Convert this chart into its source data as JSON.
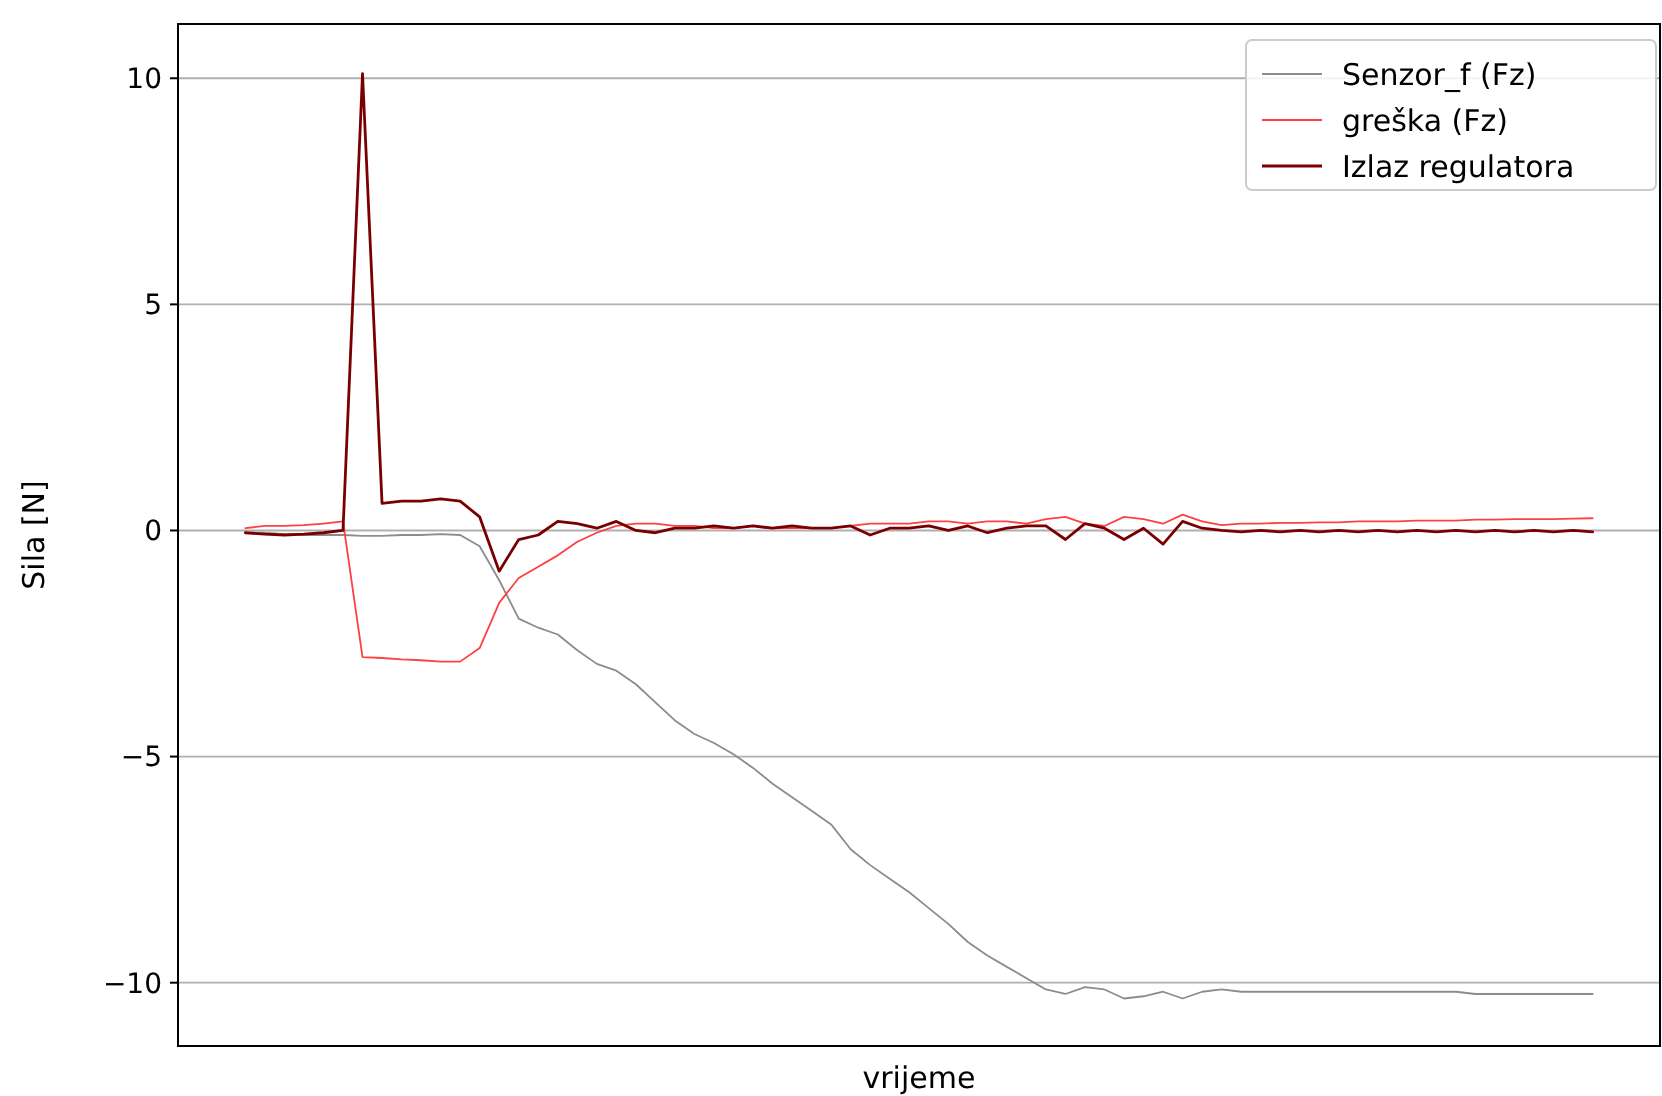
{
  "chart_data": {
    "type": "line",
    "xlabel": "vrijeme",
    "ylabel": "Sila [N]",
    "categories": [
      null,
      null,
      null,
      null,
      null,
      null,
      null,
      null,
      null,
      null,
      null,
      null,
      null,
      null,
      null,
      null,
      null,
      null,
      null,
      null,
      null,
      null,
      null,
      null,
      null,
      null,
      null,
      null,
      null,
      null,
      null,
      null,
      null,
      null,
      null,
      null,
      null,
      null,
      null,
      null,
      null,
      null,
      null,
      null,
      null,
      null,
      null,
      null,
      null,
      null,
      null,
      null,
      null,
      null,
      null,
      null,
      null,
      null,
      null,
      null,
      null,
      null,
      null,
      null,
      null,
      null,
      null,
      null,
      null,
      null
    ],
    "ylim": [
      -11.4,
      11.2
    ],
    "yticks": [
      -10,
      -5,
      0,
      5,
      10
    ],
    "grid": "y",
    "legend": "top right",
    "tick_labels": "y",
    "marker": "none",
    "line_style": "solid",
    "series": [
      {
        "name": "Senzor_f (Fz)",
        "color": "#8c8c8c",
        "values": [
          -0.05,
          -0.05,
          -0.08,
          -0.1,
          -0.1,
          -0.1,
          -0.12,
          -0.12,
          -0.1,
          -0.1,
          -0.08,
          -0.1,
          -0.35,
          -1.1,
          -1.95,
          -2.15,
          -2.3,
          -2.65,
          -2.95,
          -3.1,
          -3.4,
          -3.8,
          -4.2,
          -4.5,
          -4.7,
          -4.95,
          -5.25,
          -5.6,
          -5.9,
          -6.2,
          -6.5,
          -7.05,
          -7.4,
          -7.7,
          -8.0,
          -8.35,
          -8.7,
          -9.1,
          -9.4,
          -9.65,
          -9.9,
          -10.15,
          -10.25,
          -10.1,
          -10.15,
          -10.35,
          -10.3,
          -10.2,
          -10.35,
          -10.2,
          -10.15,
          -10.2,
          -10.2,
          -10.2,
          -10.2,
          -10.2,
          -10.2,
          -10.2,
          -10.2,
          -10.2,
          -10.2,
          -10.2,
          -10.2,
          -10.25,
          -10.25,
          -10.25,
          -10.25,
          -10.25,
          -10.25,
          -10.25
        ]
      },
      {
        "name": "greška (Fz)",
        "color": "#ff4040",
        "values": [
          0.05,
          0.1,
          0.1,
          0.12,
          0.15,
          0.2,
          -2.8,
          -2.82,
          -2.85,
          -2.87,
          -2.9,
          -2.9,
          -2.6,
          -1.6,
          -1.05,
          -0.8,
          -0.55,
          -0.25,
          -0.05,
          0.1,
          0.15,
          0.15,
          0.1,
          0.1,
          0.05,
          0.05,
          0.1,
          0.05,
          0.05,
          0.05,
          0.05,
          0.1,
          0.15,
          0.15,
          0.15,
          0.2,
          0.2,
          0.15,
          0.2,
          0.2,
          0.15,
          0.25,
          0.3,
          0.15,
          0.1,
          0.3,
          0.25,
          0.15,
          0.35,
          0.2,
          0.12,
          0.15,
          0.15,
          0.17,
          0.17,
          0.18,
          0.18,
          0.2,
          0.2,
          0.2,
          0.22,
          0.22,
          0.22,
          0.24,
          0.24,
          0.25,
          0.25,
          0.25,
          0.26,
          0.27
        ]
      },
      {
        "name": "Izlaz regulatora",
        "color": "#7a0000",
        "values": [
          -0.05,
          -0.08,
          -0.1,
          -0.08,
          -0.05,
          0.0,
          10.1,
          0.6,
          0.65,
          0.65,
          0.7,
          0.65,
          0.3,
          -0.9,
          -0.2,
          -0.1,
          0.2,
          0.15,
          0.05,
          0.2,
          0.0,
          -0.05,
          0.05,
          0.05,
          0.1,
          0.05,
          0.1,
          0.05,
          0.1,
          0.05,
          0.05,
          0.1,
          -0.1,
          0.05,
          0.05,
          0.1,
          0.0,
          0.1,
          -0.05,
          0.05,
          0.1,
          0.1,
          -0.2,
          0.15,
          0.05,
          -0.2,
          0.05,
          -0.3,
          0.2,
          0.05,
          0.0,
          -0.03,
          0.0,
          -0.03,
          0.0,
          -0.03,
          0.0,
          -0.03,
          0.0,
          -0.03,
          0.0,
          -0.03,
          0.0,
          -0.03,
          0.0,
          -0.03,
          0.0,
          -0.03,
          0.0,
          -0.03
        ]
      }
    ]
  }
}
